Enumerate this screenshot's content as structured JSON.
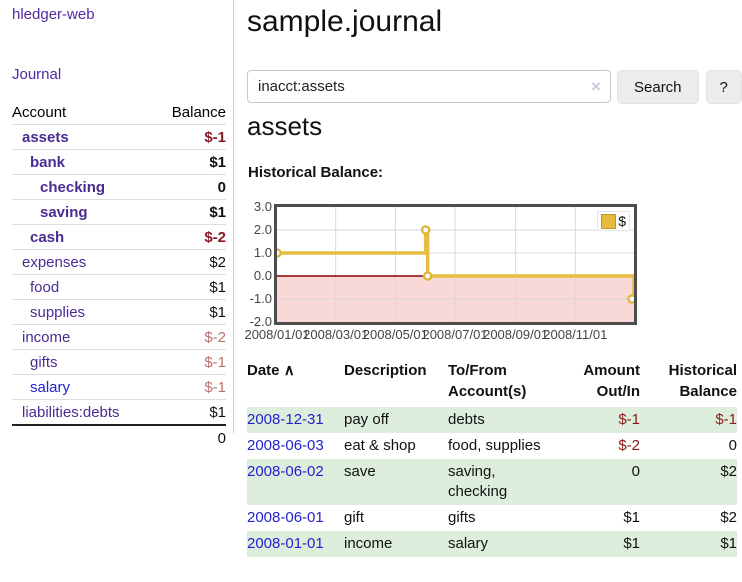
{
  "sidebar": {
    "brand": "hledger-web",
    "journal_link": "Journal",
    "accounts": {
      "header_account": "Account",
      "header_balance": "Balance",
      "rows": [
        {
          "name": "assets",
          "indent": 1,
          "bold": true,
          "balance": "$-1",
          "neg": "strong",
          "link": "purple"
        },
        {
          "name": "bank",
          "indent": 2,
          "bold": true,
          "balance": "$1",
          "neg": "none",
          "link": "purple"
        },
        {
          "name": "checking",
          "indent": 3,
          "bold": true,
          "balance": "0",
          "neg": "none",
          "link": "purple"
        },
        {
          "name": "saving",
          "indent": 3,
          "bold": true,
          "balance": "$1",
          "neg": "none",
          "link": "purple"
        },
        {
          "name": "cash",
          "indent": 2,
          "bold": true,
          "balance": "$-2",
          "neg": "strong",
          "link": "purple"
        },
        {
          "name": "expenses",
          "indent": 1,
          "bold": false,
          "balance": "$2",
          "neg": "none",
          "link": "purple"
        },
        {
          "name": "food",
          "indent": 2,
          "bold": false,
          "balance": "$1",
          "neg": "none",
          "link": "purple"
        },
        {
          "name": "supplies",
          "indent": 2,
          "bold": false,
          "balance": "$1",
          "neg": "none",
          "link": "purple"
        },
        {
          "name": "income",
          "indent": 1,
          "bold": false,
          "balance": "$-2",
          "neg": "soft",
          "link": "purple"
        },
        {
          "name": "gifts",
          "indent": 2,
          "bold": false,
          "balance": "$-1",
          "neg": "soft",
          "link": "purple"
        },
        {
          "name": "salary",
          "indent": 2,
          "bold": false,
          "balance": "$-1",
          "neg": "soft",
          "link": "blue"
        },
        {
          "name": "liabilities:debts",
          "indent": 1,
          "bold": false,
          "balance": "$1",
          "neg": "none",
          "link": "purple"
        }
      ],
      "total": "0"
    }
  },
  "header": {
    "title": "sample.journal"
  },
  "search": {
    "value": "inacct:assets",
    "clear_icon": "×",
    "button": "Search",
    "help_button": "?"
  },
  "account_page": {
    "heading": "assets",
    "chart_title": "Historical Balance:"
  },
  "chart_data": {
    "type": "line",
    "step": true,
    "title": "Historical Balance:",
    "legend": "$",
    "legend_position": "top-right",
    "grid": true,
    "ylim": [
      -2,
      3
    ],
    "xrange": [
      "2008-01-01",
      "2008-12-31"
    ],
    "yticks": [
      {
        "label": "3.0",
        "value": 3
      },
      {
        "label": "2.0",
        "value": 2
      },
      {
        "label": "1.0",
        "value": 1
      },
      {
        "label": "0.0",
        "value": 0
      },
      {
        "label": "-1.0",
        "value": -1
      },
      {
        "label": "-2.0",
        "value": -2
      }
    ],
    "xticks": [
      {
        "label": "2008/01/01",
        "date": "2008-01-01"
      },
      {
        "label": "2008/03/01",
        "date": "2008-03-01"
      },
      {
        "label": "2008/05/01",
        "date": "2008-05-01"
      },
      {
        "label": "2008/07/01",
        "date": "2008-07-01"
      },
      {
        "label": "2008/09/01",
        "date": "2008-09-01"
      },
      {
        "label": "2008/11/01",
        "date": "2008-11-01"
      }
    ],
    "series": [
      {
        "name": "$",
        "points": [
          {
            "date": "2008-01-01",
            "value": 1
          },
          {
            "date": "2008-06-01",
            "value": 2
          },
          {
            "date": "2008-06-03",
            "value": 0
          },
          {
            "date": "2008-12-31",
            "value": -1
          }
        ]
      }
    ],
    "colors": {
      "line": "#e5bd42",
      "marker_stroke": "#e0b63a",
      "marker_fill": "#ffffff",
      "negative_fill": "#f9d8d8",
      "zero_line": "#8b0000",
      "grid": "#d9d9d9",
      "legend_swatch": "#e6bb3d"
    }
  },
  "register": {
    "sort_icon": "∧",
    "headers": {
      "date": [
        "Date",
        ""
      ],
      "description": [
        "Description",
        ""
      ],
      "tofrom": [
        "To/From",
        "Account(s)"
      ],
      "amount": [
        "Amount",
        "Out/In"
      ],
      "balance": [
        "Historical",
        "Balance"
      ]
    },
    "rows": [
      {
        "date": "2008-12-31",
        "description": "pay off",
        "accounts": "debts",
        "amount": "$-1",
        "amount_neg": true,
        "balance": "$-1",
        "balance_neg": true,
        "striped": true
      },
      {
        "date": "2008-06-03",
        "description": "eat & shop",
        "accounts": "food, supplies",
        "amount": "$-2",
        "amount_neg": true,
        "balance": "0",
        "balance_neg": false,
        "striped": false
      },
      {
        "date": "2008-06-02",
        "description": "save",
        "accounts": "saving, checking",
        "amount": "0",
        "amount_neg": false,
        "balance": "$2",
        "balance_neg": false,
        "striped": true
      },
      {
        "date": "2008-06-01",
        "description": "gift",
        "accounts": "gifts",
        "amount": "$1",
        "amount_neg": false,
        "balance": "$2",
        "balance_neg": false,
        "striped": false
      },
      {
        "date": "2008-01-01",
        "description": "income",
        "accounts": "salary",
        "amount": "$1",
        "amount_neg": false,
        "balance": "$1",
        "balance_neg": false,
        "striped": true
      }
    ]
  },
  "colors": {
    "link_purple": "#4b2c93",
    "link_blue": "#2222cc",
    "negative_strong": "#8b1a1a",
    "negative_soft": "#bd6f6f",
    "stripe_green": "#ddeedd",
    "button_bg": "#ececec"
  }
}
